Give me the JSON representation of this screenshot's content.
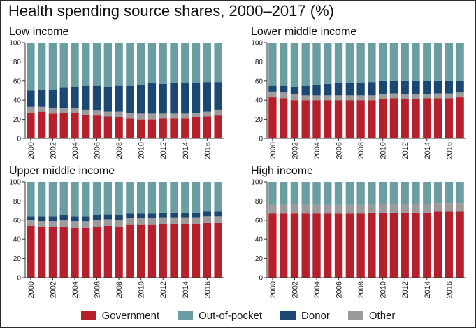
{
  "title": "Health spending source shares, 2000–2017 (%)",
  "colors": {
    "Government": "#b5202c",
    "Out-of-pocket": "#6b9ea3",
    "Donor": "#1b4873",
    "Other": "#9b9b9b"
  },
  "chart_data": [
    {
      "type": "bar",
      "stacked": true,
      "title": "Low income",
      "years": [
        2000,
        2001,
        2002,
        2003,
        2004,
        2005,
        2006,
        2007,
        2008,
        2009,
        2010,
        2011,
        2012,
        2013,
        2014,
        2015,
        2016,
        2017
      ],
      "xticks": [
        2000,
        2002,
        2004,
        2006,
        2008,
        2010,
        2012,
        2014,
        2016
      ],
      "ylim": [
        0,
        100
      ],
      "yticks": [
        0,
        20,
        40,
        60,
        80,
        100
      ],
      "series": [
        {
          "name": "Government",
          "values": [
            27,
            28,
            26,
            27,
            27,
            25,
            24,
            23,
            22,
            21,
            20,
            20,
            21,
            21,
            21,
            22,
            23,
            24
          ]
        },
        {
          "name": "Other",
          "values": [
            6,
            5,
            6,
            5,
            5,
            5,
            5,
            5,
            6,
            6,
            6,
            6,
            5,
            5,
            5,
            5,
            5,
            6
          ]
        },
        {
          "name": "Donor",
          "values": [
            17,
            18,
            19,
            21,
            22,
            25,
            26,
            26,
            27,
            28,
            30,
            32,
            31,
            32,
            32,
            31,
            31,
            29
          ]
        },
        {
          "name": "Out-of-pocket",
          "values": [
            50,
            49,
            49,
            47,
            46,
            45,
            45,
            46,
            45,
            45,
            44,
            42,
            43,
            42,
            42,
            42,
            41,
            41
          ]
        }
      ]
    },
    {
      "type": "bar",
      "stacked": true,
      "title": "Lower middle income",
      "years": [
        2000,
        2001,
        2002,
        2003,
        2004,
        2005,
        2006,
        2007,
        2008,
        2009,
        2010,
        2011,
        2012,
        2013,
        2014,
        2015,
        2016,
        2017
      ],
      "xticks": [
        2000,
        2002,
        2004,
        2006,
        2008,
        2010,
        2012,
        2014,
        2016
      ],
      "ylim": [
        0,
        100
      ],
      "yticks": [
        0,
        20,
        40,
        60,
        80,
        100
      ],
      "series": [
        {
          "name": "Government",
          "values": [
            43,
            42,
            40,
            40,
            40,
            40,
            40,
            40,
            40,
            40,
            41,
            42,
            41,
            41,
            42,
            42,
            42,
            43
          ]
        },
        {
          "name": "Other",
          "values": [
            6,
            6,
            6,
            5,
            5,
            5,
            5,
            5,
            5,
            5,
            5,
            5,
            5,
            5,
            4,
            5,
            5,
            5
          ]
        },
        {
          "name": "Donor",
          "values": [
            6,
            7,
            8,
            10,
            11,
            12,
            13,
            13,
            13,
            14,
            14,
            13,
            14,
            14,
            14,
            13,
            13,
            12
          ]
        },
        {
          "name": "Out-of-pocket",
          "values": [
            45,
            45,
            46,
            45,
            44,
            43,
            42,
            42,
            42,
            41,
            40,
            40,
            40,
            40,
            40,
            40,
            40,
            40
          ]
        }
      ]
    },
    {
      "type": "bar",
      "stacked": true,
      "title": "Upper middle income",
      "years": [
        2000,
        2001,
        2002,
        2003,
        2004,
        2005,
        2006,
        2007,
        2008,
        2009,
        2010,
        2011,
        2012,
        2013,
        2014,
        2015,
        2016,
        2017
      ],
      "xticks": [
        2000,
        2002,
        2004,
        2006,
        2008,
        2010,
        2012,
        2014,
        2016
      ],
      "ylim": [
        0,
        100
      ],
      "yticks": [
        0,
        20,
        40,
        60,
        80,
        100
      ],
      "series": [
        {
          "name": "Government",
          "values": [
            54,
            53,
            53,
            53,
            52,
            52,
            53,
            54,
            53,
            55,
            55,
            55,
            56,
            56,
            56,
            56,
            57,
            57
          ]
        },
        {
          "name": "Other",
          "values": [
            6,
            6,
            6,
            7,
            7,
            7,
            7,
            7,
            7,
            7,
            7,
            7,
            7,
            7,
            7,
            7,
            7,
            7
          ]
        },
        {
          "name": "Donor",
          "values": [
            4,
            5,
            5,
            5,
            5,
            5,
            5,
            5,
            5,
            5,
            5,
            5,
            5,
            5,
            5,
            5,
            5,
            5
          ]
        },
        {
          "name": "Out-of-pocket",
          "values": [
            36,
            36,
            36,
            35,
            36,
            36,
            35,
            34,
            35,
            33,
            33,
            33,
            32,
            32,
            32,
            32,
            31,
            31
          ]
        }
      ]
    },
    {
      "type": "bar",
      "stacked": true,
      "title": "High income",
      "years": [
        2000,
        2001,
        2002,
        2003,
        2004,
        2005,
        2006,
        2007,
        2008,
        2009,
        2010,
        2011,
        2012,
        2013,
        2014,
        2015,
        2016,
        2017
      ],
      "xticks": [
        2000,
        2002,
        2004,
        2006,
        2008,
        2010,
        2012,
        2014,
        2016
      ],
      "ylim": [
        0,
        100
      ],
      "yticks": [
        0,
        20,
        40,
        60,
        80,
        100
      ],
      "series": [
        {
          "name": "Government",
          "values": [
            67,
            67,
            67,
            67,
            67,
            67,
            67,
            67,
            67,
            68,
            68,
            68,
            68,
            68,
            68,
            69,
            69,
            69
          ]
        },
        {
          "name": "Other",
          "values": [
            9,
            9,
            9,
            9,
            9,
            9,
            9,
            9,
            9,
            9,
            9,
            9,
            9,
            9,
            9,
            9,
            9,
            9
          ]
        },
        {
          "name": "Donor",
          "values": [
            0,
            0,
            0,
            0,
            0,
            0,
            0,
            0,
            0,
            0,
            0,
            0,
            0,
            0,
            0,
            0,
            0,
            0
          ]
        },
        {
          "name": "Out-of-pocket",
          "values": [
            24,
            24,
            24,
            24,
            24,
            24,
            24,
            24,
            24,
            23,
            23,
            23,
            23,
            23,
            23,
            22,
            22,
            22
          ]
        }
      ]
    }
  ],
  "legend": [
    {
      "label": "Government",
      "key": "Government"
    },
    {
      "label": "Out-of-pocket",
      "key": "Out-of-pocket"
    },
    {
      "label": "Donor",
      "key": "Donor"
    },
    {
      "label": "Other",
      "key": "Other"
    }
  ]
}
